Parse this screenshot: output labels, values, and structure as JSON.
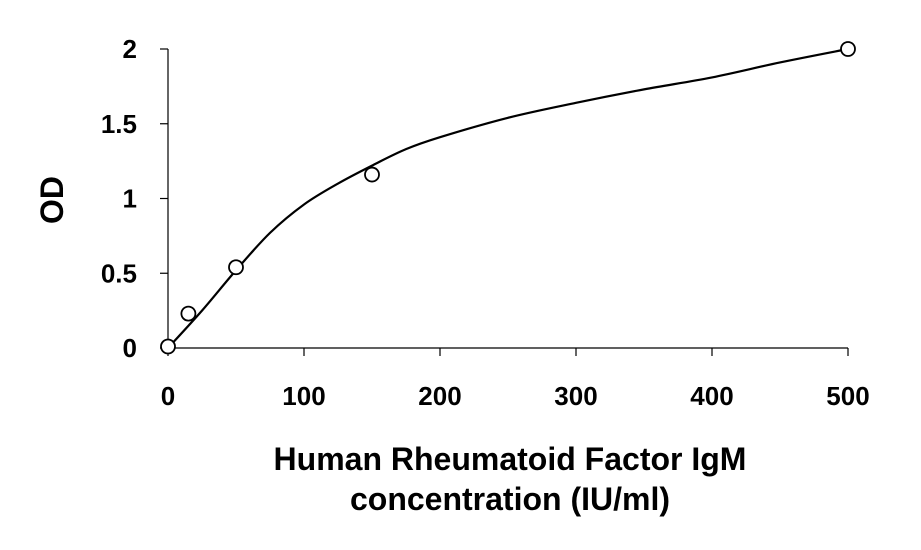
{
  "chart_data": {
    "type": "scatter",
    "title": "",
    "xlabel_lines": [
      "Human Rheumatoid Factor IgM",
      "concentration (IU/ml)"
    ],
    "ylabel": "OD",
    "xlim": [
      0,
      500
    ],
    "ylim": [
      0,
      2
    ],
    "x_ticks": [
      0,
      100,
      200,
      300,
      400,
      500
    ],
    "x_tick_labels": [
      "0",
      "100",
      "200",
      "300",
      "400",
      "500"
    ],
    "y_ticks": [
      0,
      0.5,
      1,
      1.5,
      2
    ],
    "y_tick_labels": [
      "0",
      "0.5",
      "1",
      "1.5",
      "2"
    ],
    "grid": false,
    "legend": "none",
    "series": [
      {
        "marker": "open-circle",
        "x": [
          0,
          15,
          50,
          150,
          500
        ],
        "y": [
          0.01,
          0.23,
          0.54,
          1.16,
          2.0
        ]
      }
    ],
    "fit_curve": {
      "style": "smooth-line",
      "x": [
        0,
        25,
        50,
        75,
        100,
        125,
        150,
        175,
        200,
        250,
        300,
        350,
        400,
        450,
        500
      ],
      "y": [
        0.0,
        0.25,
        0.52,
        0.77,
        0.96,
        1.1,
        1.22,
        1.33,
        1.41,
        1.54,
        1.64,
        1.73,
        1.81,
        1.91,
        2.0
      ]
    },
    "colors": {
      "axis": "#000000",
      "curve": "#000000",
      "marker_stroke": "#000000",
      "marker_fill": "#ffffff",
      "background": "#ffffff"
    }
  }
}
